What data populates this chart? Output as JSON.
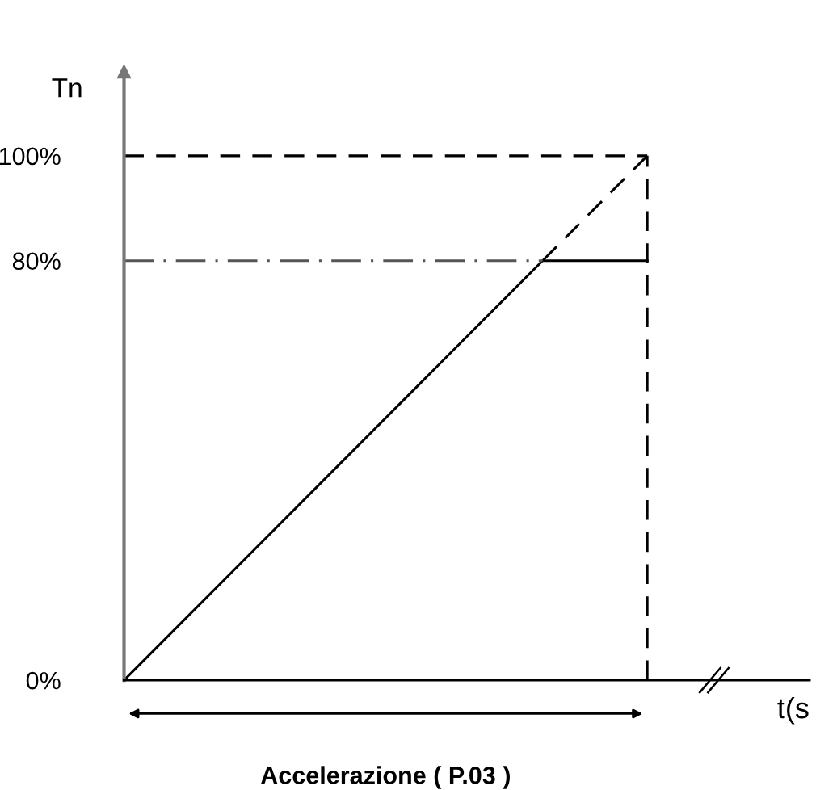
{
  "chart_data": {
    "type": "line",
    "ylabel": "Tn",
    "xlabel": "t(s",
    "annotations": [
      "Accelerazione ( P.03 )"
    ],
    "categories": [
      null,
      null,
      null,
      null,
      null,
      null
    ],
    "ylim": [
      0,
      116
    ],
    "yticks": [
      {
        "value": 0,
        "label": "0%"
      },
      {
        "value": 80,
        "label": "80%"
      },
      {
        "value": 100,
        "label": "100%"
      }
    ],
    "tick_labels": "y",
    "grid": false,
    "legend": false,
    "series": [
      {
        "color": "#000000",
        "line_style": "solid",
        "values": [
          0,
          20,
          40,
          60,
          80,
          80
        ]
      },
      {
        "color": "#000000",
        "line_style": "dashed",
        "values": [
          null,
          null,
          null,
          null,
          80,
          100
        ]
      },
      {
        "color": "#000000",
        "line_style": "dashed",
        "values": [
          100,
          100,
          100,
          100,
          100,
          100
        ]
      },
      {
        "color": "#555555",
        "line_style": "dashdot",
        "values": [
          80,
          80,
          80,
          80,
          80,
          null
        ]
      }
    ]
  }
}
